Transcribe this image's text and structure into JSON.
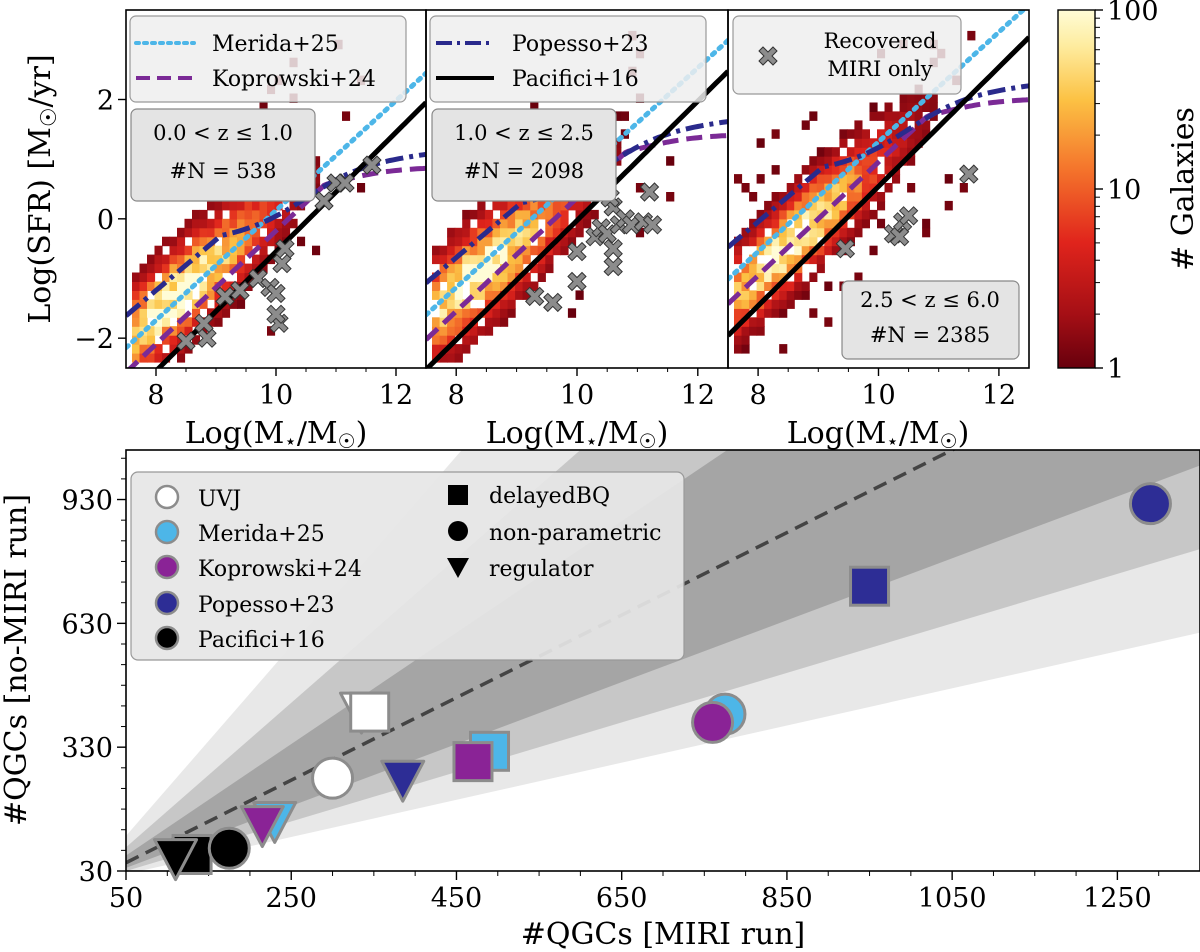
{
  "chart_data": [
    {
      "type": "heatmap",
      "id": "panel1",
      "xlabel": "Log(M⋆/M⊙)",
      "ylabel": "Log(SFR) [M⊙/yr]",
      "xlim": [
        7.5,
        12.5
      ],
      "ylim": [
        -2.5,
        3.5
      ],
      "xticks": [
        "8",
        "10",
        "12"
      ],
      "yticks": [
        "−2",
        "0",
        "2"
      ],
      "legend": [
        {
          "label": "Merida+25",
          "color": "#4db6e8",
          "dash": "dotted"
        },
        {
          "label": "Koprowski+24",
          "color": "#7b2a96",
          "dash": "dashed"
        }
      ],
      "annotation": [
        "0.0 < z  ≤ 1.0",
        "#N = 538"
      ],
      "recovered_miri_only": [
        [
          8.5,
          -2.05
        ],
        [
          8.85,
          -2.0
        ],
        [
          8.8,
          -1.75
        ],
        [
          9.15,
          -1.3
        ],
        [
          9.4,
          -1.2
        ],
        [
          9.7,
          -1.0
        ],
        [
          9.9,
          -1.15
        ],
        [
          10.0,
          -1.25
        ],
        [
          10.1,
          -0.75
        ],
        [
          10.15,
          -0.5
        ],
        [
          10.05,
          -1.75
        ],
        [
          10.0,
          -1.6
        ],
        [
          10.8,
          0.3
        ],
        [
          11.0,
          0.6
        ],
        [
          11.15,
          0.6
        ],
        [
          11.6,
          0.9
        ]
      ],
      "main_sequence": {
        "peak_x": 8.3,
        "slope": 0.9,
        "intercept": -1.35,
        "halfwidth": 0.7,
        "xmax": 11.5
      },
      "colorbar": {
        "label": "# Galaxies",
        "min": 1,
        "max": 100,
        "ticks": [
          "1",
          "10",
          "100"
        ]
      }
    },
    {
      "type": "heatmap",
      "id": "panel2",
      "xlabel": "Log(M⋆/M⊙)",
      "xlim": [
        7.5,
        12.5
      ],
      "ylim": [
        -2.5,
        3.5
      ],
      "xticks": [
        "8",
        "10",
        "12"
      ],
      "legend": [
        {
          "label": "Popesso+23",
          "color": "#2a2a8c",
          "dash": "dashdot"
        },
        {
          "label": "Pacifici+16",
          "color": "#000000",
          "dash": "solid"
        }
      ],
      "annotation": [
        "1.0 < z  ≤ 2.5",
        "#N = 2098"
      ],
      "recovered_miri_only": [
        [
          9.3,
          -1.3
        ],
        [
          9.6,
          -1.4
        ],
        [
          10.0,
          -0.55
        ],
        [
          10.0,
          -1.05
        ],
        [
          10.3,
          -0.3
        ],
        [
          10.4,
          -0.15
        ],
        [
          10.5,
          -0.25
        ],
        [
          10.6,
          -0.5
        ],
        [
          10.6,
          -0.8
        ],
        [
          10.6,
          0.2
        ],
        [
          10.55,
          0.35
        ],
        [
          10.7,
          -0.1
        ],
        [
          10.8,
          0.0
        ],
        [
          10.9,
          -0.1
        ],
        [
          11.1,
          -0.05
        ],
        [
          11.2,
          0.45
        ],
        [
          11.25,
          -0.1
        ]
      ],
      "main_sequence": {
        "peak_x": 8.3,
        "slope": 0.85,
        "intercept": -1.0,
        "halfwidth": 0.75,
        "xmax": 11.3
      }
    },
    {
      "type": "heatmap",
      "id": "panel3",
      "xlabel": "Log(M⋆/M⊙)",
      "xlim": [
        7.5,
        12.5
      ],
      "ylim": [
        -2.5,
        3.5
      ],
      "xticks": [
        "8",
        "10",
        "12"
      ],
      "legend": [
        {
          "label": "Recovered\nMIRI only",
          "marker": "x",
          "color": "#8c8c8c"
        }
      ],
      "annotation": [
        "2.5 < z  ≤ 6.0",
        "#N = 2385"
      ],
      "recovered_miri_only": [
        [
          9.45,
          -0.5
        ],
        [
          10.25,
          -0.25
        ],
        [
          10.35,
          -0.3
        ],
        [
          10.4,
          -0.05
        ],
        [
          10.5,
          0.05
        ],
        [
          11.5,
          0.75
        ]
      ],
      "main_sequence": {
        "peak_x": 8.5,
        "slope": 0.95,
        "intercept": -0.45,
        "halfwidth": 0.65,
        "xmax": 11.2
      }
    },
    {
      "type": "scatter",
      "id": "qgc",
      "xlabel": "#QGCs [MIRI run]",
      "ylabel": "#QGCs [no-MIRI run]",
      "xlim": [
        50,
        1350
      ],
      "ylim": [
        30,
        1050
      ],
      "xticks": [
        "50",
        "250",
        "450",
        "650",
        "850",
        "1050",
        "1250"
      ],
      "yticks": [
        "30",
        "330",
        "630",
        "930"
      ],
      "reference_line": {
        "slope": 1,
        "style": "dashed",
        "color": "#444444",
        "x_range": [
          50,
          1100
        ]
      },
      "bands": [
        {
          "lo": 0.75,
          "hi": 1.35,
          "color": "#9a9a9a"
        },
        {
          "lo": 0.6,
          "hi": 1.75,
          "color": "#bcbcbc"
        },
        {
          "lo": 0.45,
          "hi": 2.3,
          "color": "#e0e0e0"
        }
      ],
      "legend_colors": [
        {
          "label": "UVJ",
          "fill": "#ffffff"
        },
        {
          "label": "Merida+25",
          "fill": "#4db6e8"
        },
        {
          "label": "Koprowski+24",
          "fill": "#8a2396"
        },
        {
          "label": "Popesso+23",
          "fill": "#2d2d95"
        },
        {
          "label": "Pacifici+16",
          "fill": "#000000"
        }
      ],
      "legend_markers": [
        {
          "label": "delayedBQ",
          "marker": "square"
        },
        {
          "label": "non-parametric",
          "marker": "circle"
        },
        {
          "label": "regulator",
          "marker": "triangle"
        }
      ],
      "points": [
        {
          "x": 335,
          "y": 415,
          "marker": "triangle",
          "fill": "#ffffff",
          "edge": "#8c8c8c"
        },
        {
          "x": 345,
          "y": 415,
          "marker": "square",
          "fill": "#ffffff",
          "edge": "#8c8c8c"
        },
        {
          "x": 300,
          "y": 255,
          "marker": "circle",
          "fill": "#ffffff",
          "edge": "#8c8c8c"
        },
        {
          "x": 490,
          "y": 320,
          "marker": "square",
          "fill": "#4db6e8",
          "edge": "#8c8c8c"
        },
        {
          "x": 230,
          "y": 150,
          "marker": "triangle",
          "fill": "#4db6e8",
          "edge": "#8c8c8c"
        },
        {
          "x": 775,
          "y": 410,
          "marker": "circle",
          "fill": "#4db6e8",
          "edge": "#8c8c8c"
        },
        {
          "x": 470,
          "y": 295,
          "marker": "square",
          "fill": "#8a2396",
          "edge": "#8c8c8c"
        },
        {
          "x": 215,
          "y": 140,
          "marker": "triangle",
          "fill": "#8a2396",
          "edge": "#8c8c8c"
        },
        {
          "x": 760,
          "y": 390,
          "marker": "circle",
          "fill": "#8a2396",
          "edge": "#8c8c8c"
        },
        {
          "x": 950,
          "y": 720,
          "marker": "square",
          "fill": "#2d2d95",
          "edge": "#8c8c8c"
        },
        {
          "x": 385,
          "y": 250,
          "marker": "triangle",
          "fill": "#2d2d95",
          "edge": "#8c8c8c"
        },
        {
          "x": 1290,
          "y": 920,
          "marker": "circle",
          "fill": "#2d2d95",
          "edge": "#8c8c8c"
        },
        {
          "x": 130,
          "y": 70,
          "marker": "square",
          "fill": "#000000",
          "edge": "#8c8c8c"
        },
        {
          "x": 110,
          "y": 60,
          "marker": "triangle",
          "fill": "#000000",
          "edge": "#8c8c8c"
        },
        {
          "x": 175,
          "y": 85,
          "marker": "circle",
          "fill": "#000000",
          "edge": "#8c8c8c"
        }
      ]
    }
  ]
}
